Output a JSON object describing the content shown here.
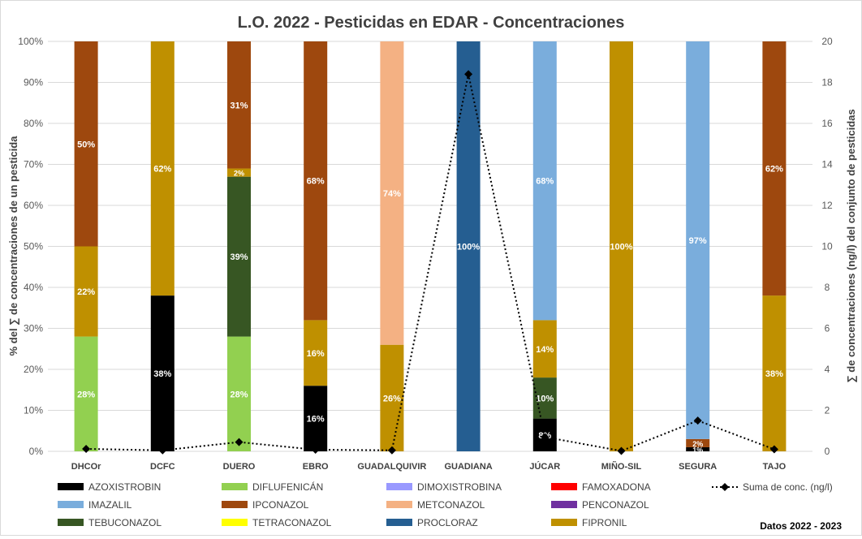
{
  "chart_data": {
    "type": "bar",
    "stacked": true,
    "percent_stacked": true,
    "title": "L.O. 2022 - Pesticidas en EDAR - Concentraciones",
    "ylabel": "% del ∑ de concentraciones de un pesticida",
    "y2label": "∑ de concentraciones (ng/l) del conjunto de pesticidas",
    "note": "Datos 2022 - 2023",
    "ylim": [
      0,
      100
    ],
    "y2lim": [
      0,
      20
    ],
    "y_ticks": [
      "0%",
      "10%",
      "20%",
      "30%",
      "40%",
      "50%",
      "60%",
      "70%",
      "80%",
      "90%",
      "100%"
    ],
    "y2_ticks": [
      "0",
      "2",
      "4",
      "6",
      "8",
      "10",
      "12",
      "14",
      "16",
      "18",
      "20"
    ],
    "grid": true,
    "legend_position": "bottom",
    "categories": [
      "DHCOr",
      "DCFC",
      "DUERO",
      "EBRO",
      "GUADALQUIVIR",
      "GUADIANA",
      "JÚCAR",
      "MIÑO-SIL",
      "SEGURA",
      "TAJO"
    ],
    "series": [
      {
        "name": "AZOXISTROBIN",
        "color": "#000000",
        "values": [
          0,
          38,
          0,
          16,
          0,
          0,
          8,
          0,
          1,
          0
        ],
        "labels": [
          "",
          "38%",
          "",
          "16%",
          "",
          "",
          "8%",
          "",
          "1%",
          ""
        ]
      },
      {
        "name": "DIFLUFENICÁN",
        "color": "#92d050",
        "values": [
          28,
          0,
          28,
          0,
          0,
          0,
          0,
          0,
          0,
          0
        ],
        "labels": [
          "28%",
          "",
          "28%",
          "",
          "",
          "",
          "",
          "",
          "",
          ""
        ]
      },
      {
        "name": "DIMOXISTROBINA",
        "color": "#9999ff",
        "values": [
          0,
          0,
          0,
          0,
          0,
          0,
          0,
          0,
          0,
          0
        ],
        "labels": [
          "",
          "",
          "",
          "",
          "",
          "",
          "",
          "",
          "",
          ""
        ]
      },
      {
        "name": "FAMOXADONA",
        "color": "#ff0000",
        "values": [
          0,
          0,
          0,
          0,
          0,
          0,
          0,
          0,
          0,
          0
        ],
        "labels": [
          "",
          "",
          "",
          "",
          "",
          "",
          "",
          "",
          "",
          ""
        ]
      },
      {
        "name": "IMAZALIL",
        "color": "#7aaddc",
        "values": [
          0,
          0,
          0,
          0,
          0,
          0,
          68,
          0,
          97,
          0
        ],
        "labels": [
          "",
          "",
          "",
          "",
          "",
          "",
          "68%",
          "",
          "97%",
          ""
        ]
      },
      {
        "name": "IPCONAZOL",
        "color": "#9e480e",
        "values": [
          50,
          0,
          31,
          68,
          0,
          0,
          0,
          0,
          2,
          62
        ],
        "labels": [
          "50%",
          "",
          "31%",
          "68%",
          "",
          "",
          "",
          "",
          "2%",
          "62%"
        ]
      },
      {
        "name": "METCONAZOL",
        "color": "#f4b183",
        "values": [
          0,
          0,
          0,
          0,
          74,
          0,
          0,
          0,
          0,
          0
        ],
        "labels": [
          "",
          "",
          "",
          "",
          "74%",
          "",
          "",
          "",
          "",
          ""
        ]
      },
      {
        "name": "PENCONAZOL",
        "color": "#7030a0",
        "values": [
          0,
          0,
          0,
          0,
          0,
          0,
          0,
          0,
          0,
          0
        ],
        "labels": [
          "",
          "",
          "",
          "",
          "",
          "",
          "",
          "",
          "",
          ""
        ]
      },
      {
        "name": "TEBUCONAZOL",
        "color": "#375623",
        "values": [
          0,
          0,
          39,
          0,
          0,
          0,
          10,
          0,
          0,
          0
        ],
        "labels": [
          "",
          "",
          "39%",
          "",
          "",
          "",
          "10%",
          "",
          "",
          ""
        ]
      },
      {
        "name": "TETRACONAZOL",
        "color": "#ffff00",
        "values": [
          0,
          0,
          0,
          0,
          0,
          0,
          0,
          0,
          0,
          0
        ],
        "labels": [
          "",
          "",
          "",
          "",
          "",
          "",
          "",
          "",
          "",
          ""
        ]
      },
      {
        "name": "PROCLORAZ",
        "color": "#255e91",
        "values": [
          0,
          0,
          0,
          0,
          0,
          100,
          0,
          0,
          0,
          0
        ],
        "labels": [
          "",
          "",
          "",
          "",
          "",
          "100%",
          "",
          "",
          "",
          ""
        ]
      },
      {
        "name": "FIPRONIL",
        "color": "#bf9000",
        "values": [
          22,
          62,
          2,
          16,
          26,
          0,
          14,
          100,
          0,
          38
        ],
        "labels": [
          "22%",
          "62%",
          "2%",
          "16%",
          "26%",
          "",
          "14%",
          "100%",
          "",
          "38%"
        ]
      }
    ],
    "stack_order": [
      "AZOXISTROBIN",
      "DIFLUFENICÁN",
      "DIMOXISTROBINA",
      "FAMOXADONA",
      "TEBUCONAZOL",
      "TETRACONAZOL",
      "FIPRONIL",
      "IPCONAZOL",
      "IMAZALIL",
      "METCONAZOL",
      "PENCONAZOL",
      "PROCLORAZ"
    ],
    "line_series": {
      "name": "Suma de conc. (ng/l)",
      "axis": "secondary",
      "color": "#000000",
      "style": "dotted",
      "marker": "diamond",
      "values": [
        0.12,
        0.05,
        0.45,
        0.08,
        0.05,
        18.4,
        0.7,
        0.02,
        1.5,
        0.1
      ]
    },
    "legend_rows": [
      [
        "AZOXISTROBIN",
        "DIFLUFENICÁN",
        "DIMOXISTROBINA",
        "FAMOXADONA",
        "Suma de conc. (ng/l)"
      ],
      [
        "IMAZALIL",
        "IPCONAZOL",
        "METCONAZOL",
        "PENCONAZOL"
      ],
      [
        "TEBUCONAZOL",
        "TETRACONAZOL",
        "PROCLORAZ",
        "FIPRONIL"
      ]
    ]
  }
}
